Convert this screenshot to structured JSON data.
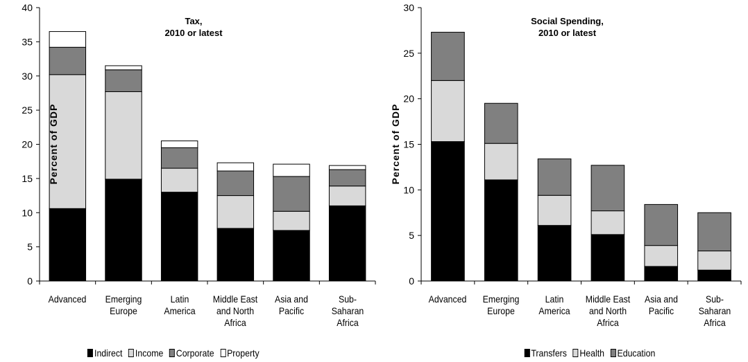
{
  "chart_data": [
    {
      "type": "bar",
      "stacked": true,
      "title": "Tax,\n2010 or latest",
      "y_label": "Percent of GDP",
      "categories": [
        "Advanced",
        "Emerging Europe",
        "Latin America",
        "Middle East and North Africa",
        "Asia and Pacific",
        "Sub-Saharan Africa"
      ],
      "series": [
        {
          "name": "Indirect",
          "color": "#000000",
          "values": [
            10.6,
            14.9,
            13.0,
            7.7,
            7.4,
            11.0
          ]
        },
        {
          "name": "Income",
          "color": "#d9d9d9",
          "values": [
            19.6,
            12.8,
            3.5,
            4.8,
            2.8,
            2.9
          ]
        },
        {
          "name": "Corporate",
          "color": "#808080",
          "values": [
            4.0,
            3.2,
            3.0,
            3.6,
            5.1,
            2.4
          ]
        },
        {
          "name": "Property",
          "color": "#ffffff",
          "values": [
            2.3,
            0.6,
            1.0,
            1.2,
            1.8,
            0.6
          ]
        }
      ],
      "ylim": [
        0,
        40
      ],
      "yticks": [
        0,
        5,
        10,
        15,
        20,
        25,
        30,
        35,
        40
      ]
    },
    {
      "type": "bar",
      "stacked": true,
      "title": "Social Spending,\n2010 or latest",
      "y_label": "Percent of GDP",
      "categories": [
        "Advanced",
        "Emerging Europe",
        "Latin America",
        "Middle East and North Africa",
        "Asia and Pacific",
        "Sub-Saharan Africa"
      ],
      "series": [
        {
          "name": "Transfers",
          "color": "#000000",
          "values": [
            15.3,
            11.1,
            6.1,
            5.1,
            1.6,
            1.2
          ]
        },
        {
          "name": "Health",
          "color": "#d9d9d9",
          "values": [
            6.7,
            4.0,
            3.3,
            2.6,
            2.3,
            2.1
          ]
        },
        {
          "name": "Education",
          "color": "#808080",
          "values": [
            5.3,
            4.4,
            4.0,
            5.0,
            4.5,
            4.2
          ]
        }
      ],
      "ylim": [
        0,
        30
      ],
      "yticks": [
        0,
        5,
        10,
        15,
        20,
        25,
        30
      ]
    }
  ]
}
